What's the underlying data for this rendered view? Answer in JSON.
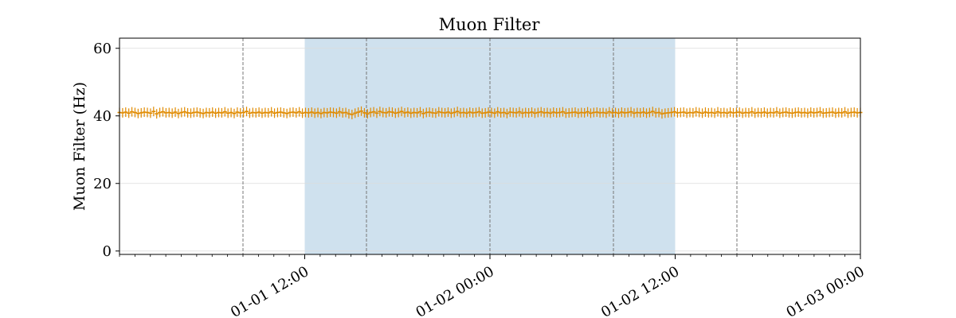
{
  "chart_data": {
    "type": "scatter",
    "title": "Muon Filter",
    "xlabel": "",
    "ylabel": "Muon Filter (Hz)",
    "x_unit": "datetime",
    "xlim": [
      "2024-01-01 00:00",
      "2024-01-03 00:00"
    ],
    "ylim": [
      -1,
      63
    ],
    "y_ticks": [
      0,
      20,
      40,
      60
    ],
    "x_ticks": [
      {
        "at": "2024-01-01 12:00",
        "label": "01-01 12:00"
      },
      {
        "at": "2024-01-02 00:00",
        "label": "01-02 00:00"
      },
      {
        "at": "2024-01-02 12:00",
        "label": "01-02 12:00"
      },
      {
        "at": "2024-01-03 00:00",
        "label": "01-03 00:00"
      }
    ],
    "vertical_lines": [
      "2024-01-01 08:00",
      "2024-01-01 16:00",
      "2024-01-02 00:00",
      "2024-01-02 08:00",
      "2024-01-02 16:00"
    ],
    "shaded_region": {
      "start": "2024-01-01 12:00",
      "end": "2024-01-02 12:00",
      "color": "#a8c8e0"
    },
    "grid": "horizontal",
    "series": [
      {
        "color": "#e08a00",
        "marker": "+",
        "start": "2024-01-01 00:00",
        "end": "2024-01-03 00:00",
        "values": [
          41.0,
          40.9,
          41.1,
          40.8,
          41.2,
          41.0,
          40.7,
          40.9,
          41.1,
          41.0,
          40.8,
          41.3,
          40.6,
          41.0,
          41.2,
          40.9,
          41.0,
          40.8,
          41.1,
          40.7,
          41.0,
          41.2,
          40.9,
          40.8,
          41.0,
          41.1,
          40.9,
          40.7,
          41.0,
          40.9,
          41.1,
          40.8,
          41.0,
          40.9,
          41.2,
          40.8,
          41.0,
          40.7,
          41.1,
          40.9,
          41.0,
          41.3,
          40.8,
          41.0,
          40.9,
          41.1,
          40.8,
          41.0,
          40.9,
          41.2,
          40.8,
          41.0,
          41.1,
          40.9,
          40.7,
          41.0,
          41.1,
          40.9,
          41.2,
          40.8,
          41.0,
          40.9,
          41.1,
          40.8,
          41.0,
          40.7,
          41.0,
          40.9,
          41.1,
          41.0,
          40.8,
          41.2,
          40.9,
          41.0,
          40.6,
          40.4,
          40.8,
          41.1,
          41.4,
          40.9,
          40.6,
          41.0,
          41.2,
          40.8,
          41.3,
          41.0,
          40.9,
          41.2,
          41.1,
          40.8,
          41.0,
          41.3,
          40.9,
          41.1,
          40.8,
          41.0,
          40.9,
          41.2,
          40.7,
          41.0,
          41.1,
          40.9,
          40.8,
          41.2,
          41.0,
          40.9,
          41.1,
          40.8,
          41.0,
          41.3,
          40.9,
          41.0,
          40.8,
          41.1,
          40.9,
          41.0,
          41.2,
          40.8,
          40.9,
          41.1,
          41.0,
          40.8,
          41.2,
          40.9,
          41.0,
          40.7,
          41.1,
          41.0,
          40.9,
          41.2,
          40.8,
          41.0,
          40.9,
          41.1,
          40.8,
          41.0,
          41.2,
          40.9,
          41.0,
          40.8,
          41.1,
          40.9,
          41.0,
          41.2,
          40.8,
          40.9,
          41.0,
          41.1,
          40.8,
          41.0,
          40.9,
          41.2,
          40.8,
          41.0,
          41.1,
          40.9,
          41.0,
          40.8,
          41.2,
          40.9,
          41.0,
          40.8,
          41.1,
          40.9,
          41.0,
          41.2,
          40.8,
          41.0,
          40.9,
          41.1,
          40.8,
          41.0,
          41.3,
          40.9,
          41.0,
          40.6,
          40.8,
          40.9,
          41.0,
          41.2,
          40.9,
          41.0,
          41.1,
          40.8,
          41.0,
          40.9,
          41.2,
          41.0,
          40.8,
          41.1,
          40.9,
          41.0,
          40.8,
          41.2,
          40.9,
          41.0,
          40.8,
          41.1,
          40.9,
          41.0,
          41.1,
          40.8,
          41.0,
          40.9,
          41.2,
          40.8,
          41.0,
          40.9,
          41.1,
          40.8,
          41.0,
          40.9,
          41.2,
          40.8,
          41.0,
          41.1,
          40.9,
          40.8,
          41.0,
          41.1,
          40.9,
          41.0,
          40.8,
          41.1,
          40.9,
          41.0,
          41.2,
          40.8,
          40.9,
          41.0,
          41.1,
          40.8,
          41.0,
          40.9,
          41.2,
          40.8,
          41.0,
          41.1,
          40.9,
          41.0
        ]
      }
    ]
  }
}
